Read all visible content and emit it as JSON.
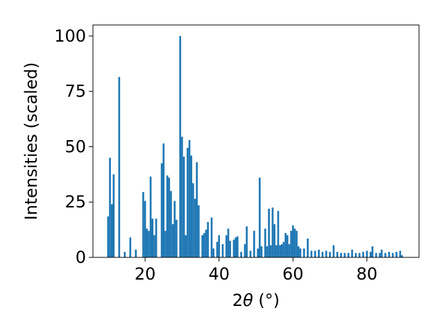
{
  "chart_data": {
    "type": "bar",
    "xlabel_text": "2",
    "xlabel_theta": "θ",
    "xlabel_unit": " (°)",
    "ylabel": "Intensities (scaled)",
    "xlim": [
      5.9,
      94.1
    ],
    "ylim": [
      0,
      105
    ],
    "xticks": [
      20,
      40,
      60,
      80
    ],
    "yticks": [
      0,
      25,
      50,
      75,
      100
    ],
    "bar_color": "#1f77b4",
    "bar_width": 0.5,
    "grid": false,
    "points": [
      {
        "x": 10.0,
        "y": 18.5
      },
      {
        "x": 10.5,
        "y": 45.0
      },
      {
        "x": 11.0,
        "y": 24.0
      },
      {
        "x": 11.5,
        "y": 37.5
      },
      {
        "x": 13.0,
        "y": 81.5
      },
      {
        "x": 14.5,
        "y": 2.5
      },
      {
        "x": 16.0,
        "y": 9.0
      },
      {
        "x": 17.5,
        "y": 3.5
      },
      {
        "x": 19.5,
        "y": 29.5
      },
      {
        "x": 20.0,
        "y": 25.5
      },
      {
        "x": 20.5,
        "y": 13.0
      },
      {
        "x": 21.0,
        "y": 12.0
      },
      {
        "x": 21.5,
        "y": 36.5
      },
      {
        "x": 22.0,
        "y": 17.5
      },
      {
        "x": 22.5,
        "y": 10.0
      },
      {
        "x": 23.0,
        "y": 17.5
      },
      {
        "x": 24.5,
        "y": 42.5
      },
      {
        "x": 25.0,
        "y": 51.5
      },
      {
        "x": 25.5,
        "y": 12.0
      },
      {
        "x": 26.0,
        "y": 37.0
      },
      {
        "x": 26.5,
        "y": 36.0
      },
      {
        "x": 27.0,
        "y": 30.0
      },
      {
        "x": 27.5,
        "y": 15.0
      },
      {
        "x": 28.0,
        "y": 25.5
      },
      {
        "x": 28.5,
        "y": 17.0
      },
      {
        "x": 29.5,
        "y": 100.0
      },
      {
        "x": 30.0,
        "y": 54.5
      },
      {
        "x": 30.5,
        "y": 45.5
      },
      {
        "x": 31.0,
        "y": 10.0
      },
      {
        "x": 31.5,
        "y": 49.5
      },
      {
        "x": 32.0,
        "y": 53.0
      },
      {
        "x": 32.5,
        "y": 46.0
      },
      {
        "x": 33.0,
        "y": 33.5
      },
      {
        "x": 33.5,
        "y": 26.5
      },
      {
        "x": 34.0,
        "y": 43.0
      },
      {
        "x": 34.5,
        "y": 23.5
      },
      {
        "x": 35.5,
        "y": 10.0
      },
      {
        "x": 36.0,
        "y": 11.0
      },
      {
        "x": 36.5,
        "y": 12.5
      },
      {
        "x": 37.0,
        "y": 16.0
      },
      {
        "x": 38.0,
        "y": 18.0
      },
      {
        "x": 38.5,
        "y": 4.0
      },
      {
        "x": 39.5,
        "y": 7.0
      },
      {
        "x": 40.0,
        "y": 10.0
      },
      {
        "x": 41.0,
        "y": 6.0
      },
      {
        "x": 42.0,
        "y": 10.0
      },
      {
        "x": 42.5,
        "y": 13.0
      },
      {
        "x": 43.0,
        "y": 7.5
      },
      {
        "x": 44.0,
        "y": 8.0
      },
      {
        "x": 44.5,
        "y": 9.0
      },
      {
        "x": 45.0,
        "y": 9.5
      },
      {
        "x": 46.0,
        "y": 2.5
      },
      {
        "x": 47.0,
        "y": 6.0
      },
      {
        "x": 47.5,
        "y": 14.0
      },
      {
        "x": 48.5,
        "y": 3.0
      },
      {
        "x": 49.5,
        "y": 12.0
      },
      {
        "x": 50.5,
        "y": 4.0
      },
      {
        "x": 51.0,
        "y": 36.0
      },
      {
        "x": 51.5,
        "y": 5.0
      },
      {
        "x": 52.5,
        "y": 13.0
      },
      {
        "x": 53.0,
        "y": 5.0
      },
      {
        "x": 53.5,
        "y": 22.0
      },
      {
        "x": 54.0,
        "y": 5.5
      },
      {
        "x": 54.5,
        "y": 22.5
      },
      {
        "x": 55.0,
        "y": 15.0
      },
      {
        "x": 55.5,
        "y": 5.5
      },
      {
        "x": 56.0,
        "y": 21.0
      },
      {
        "x": 56.5,
        "y": 5.5
      },
      {
        "x": 57.0,
        "y": 6.0
      },
      {
        "x": 57.5,
        "y": 7.0
      },
      {
        "x": 58.0,
        "y": 11.0
      },
      {
        "x": 58.5,
        "y": 10.0
      },
      {
        "x": 59.0,
        "y": 6.0
      },
      {
        "x": 59.5,
        "y": 12.0
      },
      {
        "x": 60.0,
        "y": 14.5
      },
      {
        "x": 60.5,
        "y": 13.0
      },
      {
        "x": 61.0,
        "y": 12.0
      },
      {
        "x": 61.5,
        "y": 5.0
      },
      {
        "x": 62.0,
        "y": 4.0
      },
      {
        "x": 63.0,
        "y": 4.0
      },
      {
        "x": 64.0,
        "y": 8.5
      },
      {
        "x": 65.0,
        "y": 3.0
      },
      {
        "x": 66.0,
        "y": 3.0
      },
      {
        "x": 67.0,
        "y": 3.5
      },
      {
        "x": 68.0,
        "y": 2.5
      },
      {
        "x": 69.0,
        "y": 3.0
      },
      {
        "x": 70.0,
        "y": 2.5
      },
      {
        "x": 71.0,
        "y": 5.5
      },
      {
        "x": 72.0,
        "y": 2.5
      },
      {
        "x": 73.0,
        "y": 2.0
      },
      {
        "x": 74.0,
        "y": 2.0
      },
      {
        "x": 75.0,
        "y": 2.0
      },
      {
        "x": 76.0,
        "y": 3.5
      },
      {
        "x": 77.0,
        "y": 2.0
      },
      {
        "x": 78.0,
        "y": 2.0
      },
      {
        "x": 79.0,
        "y": 2.5
      },
      {
        "x": 80.0,
        "y": 3.0
      },
      {
        "x": 81.0,
        "y": 2.5
      },
      {
        "x": 81.5,
        "y": 5.0
      },
      {
        "x": 82.5,
        "y": 2.0
      },
      {
        "x": 83.5,
        "y": 2.0
      },
      {
        "x": 84.0,
        "y": 3.5
      },
      {
        "x": 85.0,
        "y": 2.0
      },
      {
        "x": 86.0,
        "y": 2.5
      },
      {
        "x": 87.0,
        "y": 2.0
      },
      {
        "x": 88.0,
        "y": 2.5
      },
      {
        "x": 89.0,
        "y": 3.0
      },
      {
        "x": 89.5,
        "y": 1.0
      }
    ]
  }
}
